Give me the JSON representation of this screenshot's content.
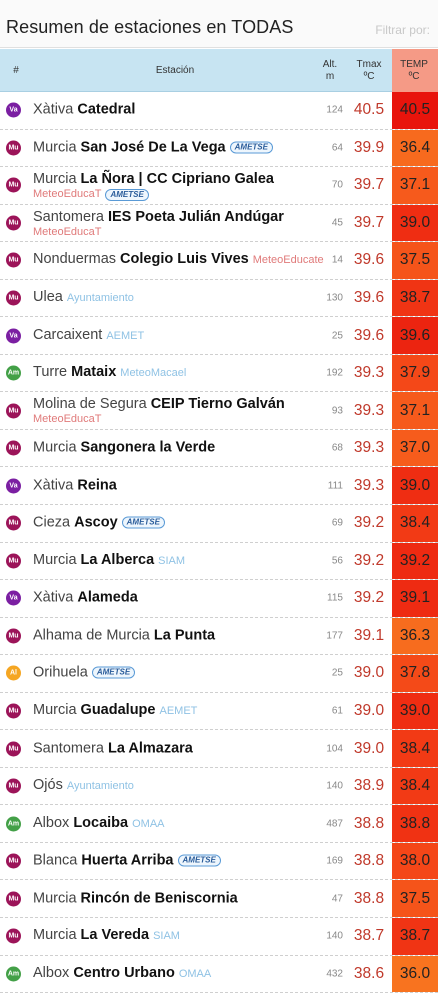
{
  "header": {
    "title": "Resumen de estaciones en TODAS",
    "filter_label": "Filtrar por:"
  },
  "table": {
    "columns": {
      "num": "#",
      "station": "Estación",
      "alt": [
        "Alt.",
        "m"
      ],
      "tmax": [
        "Tmax",
        "ºC"
      ],
      "temp": [
        "TEMP",
        "ºC"
      ]
    },
    "rows": [
      {
        "badge": "Va",
        "badge_color": "#7b1fa2",
        "city": "Xàtiva",
        "station": "Catedral",
        "source": "",
        "source_type": "",
        "alt": "124",
        "tmax": "40.5",
        "temp": "40.5",
        "temp_color": "#e8140c"
      },
      {
        "badge": "Mu",
        "badge_color": "#9c1459",
        "city": "Murcia",
        "station": "San José De La Vega",
        "source": "AMETSE",
        "source_type": "ametse",
        "alt": "64",
        "tmax": "39.9",
        "temp": "36.4",
        "temp_color": "#f76a1e"
      },
      {
        "badge": "Mu",
        "badge_color": "#9c1459",
        "city": "Murcia",
        "station": "La Ñora | CC Cipriano Galea",
        "source": "MeteoEducaT",
        "source_type": "meteo",
        "source2": "AMETSE",
        "alt": "70",
        "tmax": "39.7",
        "temp": "37.1",
        "temp_color": "#f65a1c",
        "two_line": true
      },
      {
        "badge": "Mu",
        "badge_color": "#9c1459",
        "city": "Santomera",
        "station": "IES Poeta Julián Andúgar",
        "source": "MeteoEducaT",
        "source_type": "meteo",
        "alt": "45",
        "tmax": "39.7",
        "temp": "39.0",
        "temp_color": "#ef2d12",
        "two_line": true
      },
      {
        "badge": "Mu",
        "badge_color": "#9c1459",
        "city": "Nonduermas",
        "station": "Colegio Luis Vives",
        "source": "MeteoEducate",
        "source_type": "meteo",
        "alt": "14",
        "tmax": "39.6",
        "temp": "37.5",
        "temp_color": "#f5541a"
      },
      {
        "badge": "Mu",
        "badge_color": "#9c1459",
        "city": "Ulea",
        "station": "",
        "source": "Ayuntamiento",
        "source_type": "ayto",
        "alt": "130",
        "tmax": "39.6",
        "temp": "38.7",
        "temp_color": "#f03414"
      },
      {
        "badge": "Va",
        "badge_color": "#7b1fa2",
        "city": "Carcaixent",
        "station": "",
        "source": "AEMET",
        "source_type": "aemet",
        "alt": "25",
        "tmax": "39.6",
        "temp": "39.6",
        "temp_color": "#ec2410"
      },
      {
        "badge": "Am",
        "badge_color": "#43a047",
        "city": "Turre",
        "station": "Mataix",
        "source": "MeteoMacael",
        "source_type": "macael",
        "alt": "192",
        "tmax": "39.3",
        "temp": "37.9",
        "temp_color": "#f44818"
      },
      {
        "badge": "Mu",
        "badge_color": "#9c1459",
        "city": "Molina de Segura",
        "station": "CEIP Tierno Galván",
        "source": "MeteoEducaT",
        "source_type": "meteo",
        "alt": "93",
        "tmax": "39.3",
        "temp": "37.1",
        "temp_color": "#f65a1c",
        "two_line": true
      },
      {
        "badge": "Mu",
        "badge_color": "#9c1459",
        "city": "Murcia",
        "station": "Sangonera la Verde",
        "source": "",
        "source_type": "",
        "alt": "68",
        "tmax": "39.3",
        "temp": "37.0",
        "temp_color": "#f65c1c"
      },
      {
        "badge": "Va",
        "badge_color": "#7b1fa2",
        "city": "Xàtiva",
        "station": "Reina",
        "source": "",
        "source_type": "",
        "alt": "111",
        "tmax": "39.3",
        "temp": "39.0",
        "temp_color": "#ef2d12"
      },
      {
        "badge": "Mu",
        "badge_color": "#9c1459",
        "city": "Cieza",
        "station": "Ascoy",
        "source": "AMETSE",
        "source_type": "ametse",
        "alt": "69",
        "tmax": "39.2",
        "temp": "38.4",
        "temp_color": "#f23a15"
      },
      {
        "badge": "Mu",
        "badge_color": "#9c1459",
        "city": "Murcia",
        "station": "La Alberca",
        "source": "SIAM",
        "source_type": "siam",
        "alt": "56",
        "tmax": "39.2",
        "temp": "39.2",
        "temp_color": "#ee2a11"
      },
      {
        "badge": "Va",
        "badge_color": "#7b1fa2",
        "city": "Xàtiva",
        "station": "Alameda",
        "source": "",
        "source_type": "",
        "alt": "115",
        "tmax": "39.2",
        "temp": "39.1",
        "temp_color": "#ee2b12"
      },
      {
        "badge": "Mu",
        "badge_color": "#9c1459",
        "city": "Alhama de Murcia",
        "station": "La Punta",
        "source": "",
        "source_type": "",
        "alt": "177",
        "tmax": "39.1",
        "temp": "36.3",
        "temp_color": "#f76c1e"
      },
      {
        "badge": "Al",
        "badge_color": "#f5a623",
        "city": "Orihuela",
        "station": "",
        "source": "AMETSE",
        "source_type": "ametse",
        "alt": "25",
        "tmax": "39.0",
        "temp": "37.8",
        "temp_color": "#f44a18"
      },
      {
        "badge": "Mu",
        "badge_color": "#9c1459",
        "city": "Murcia",
        "station": "Guadalupe",
        "source": "AEMET",
        "source_type": "aemet",
        "alt": "61",
        "tmax": "39.0",
        "temp": "39.0",
        "temp_color": "#ef2d12"
      },
      {
        "badge": "Mu",
        "badge_color": "#9c1459",
        "city": "Santomera",
        "station": "La Almazara",
        "source": "",
        "source_type": "",
        "alt": "104",
        "tmax": "39.0",
        "temp": "38.4",
        "temp_color": "#f23a15"
      },
      {
        "badge": "Mu",
        "badge_color": "#9c1459",
        "city": "Ojós",
        "station": "",
        "source": "Ayuntamiento",
        "source_type": "ayto",
        "alt": "140",
        "tmax": "38.9",
        "temp": "38.4",
        "temp_color": "#f23a15"
      },
      {
        "badge": "Am",
        "badge_color": "#43a047",
        "city": "Albox",
        "station": "Locaiba",
        "source": "OMAA",
        "source_type": "omaa",
        "alt": "487",
        "tmax": "38.8",
        "temp": "38.8",
        "temp_color": "#f03213"
      },
      {
        "badge": "Mu",
        "badge_color": "#9c1459",
        "city": "Blanca",
        "station": "Huerta Arriba",
        "source": "AMETSE",
        "source_type": "ametse",
        "alt": "169",
        "tmax": "38.8",
        "temp": "38.0",
        "temp_color": "#f44618"
      },
      {
        "badge": "Mu",
        "badge_color": "#9c1459",
        "city": "Murcia",
        "station": "Rincón de Beniscornia",
        "source": "",
        "source_type": "",
        "alt": "47",
        "tmax": "38.8",
        "temp": "37.5",
        "temp_color": "#f5541a"
      },
      {
        "badge": "Mu",
        "badge_color": "#9c1459",
        "city": "Murcia",
        "station": "La Vereda",
        "source": "SIAM",
        "source_type": "siam",
        "alt": "140",
        "tmax": "38.7",
        "temp": "38.7",
        "temp_color": "#f03414"
      },
      {
        "badge": "Am",
        "badge_color": "#43a047",
        "city": "Albox",
        "station": "Centro Urbano",
        "source": "OMAA",
        "source_type": "omaa",
        "alt": "432",
        "tmax": "38.6",
        "temp": "36.0",
        "temp_color": "#f8731f"
      }
    ]
  }
}
